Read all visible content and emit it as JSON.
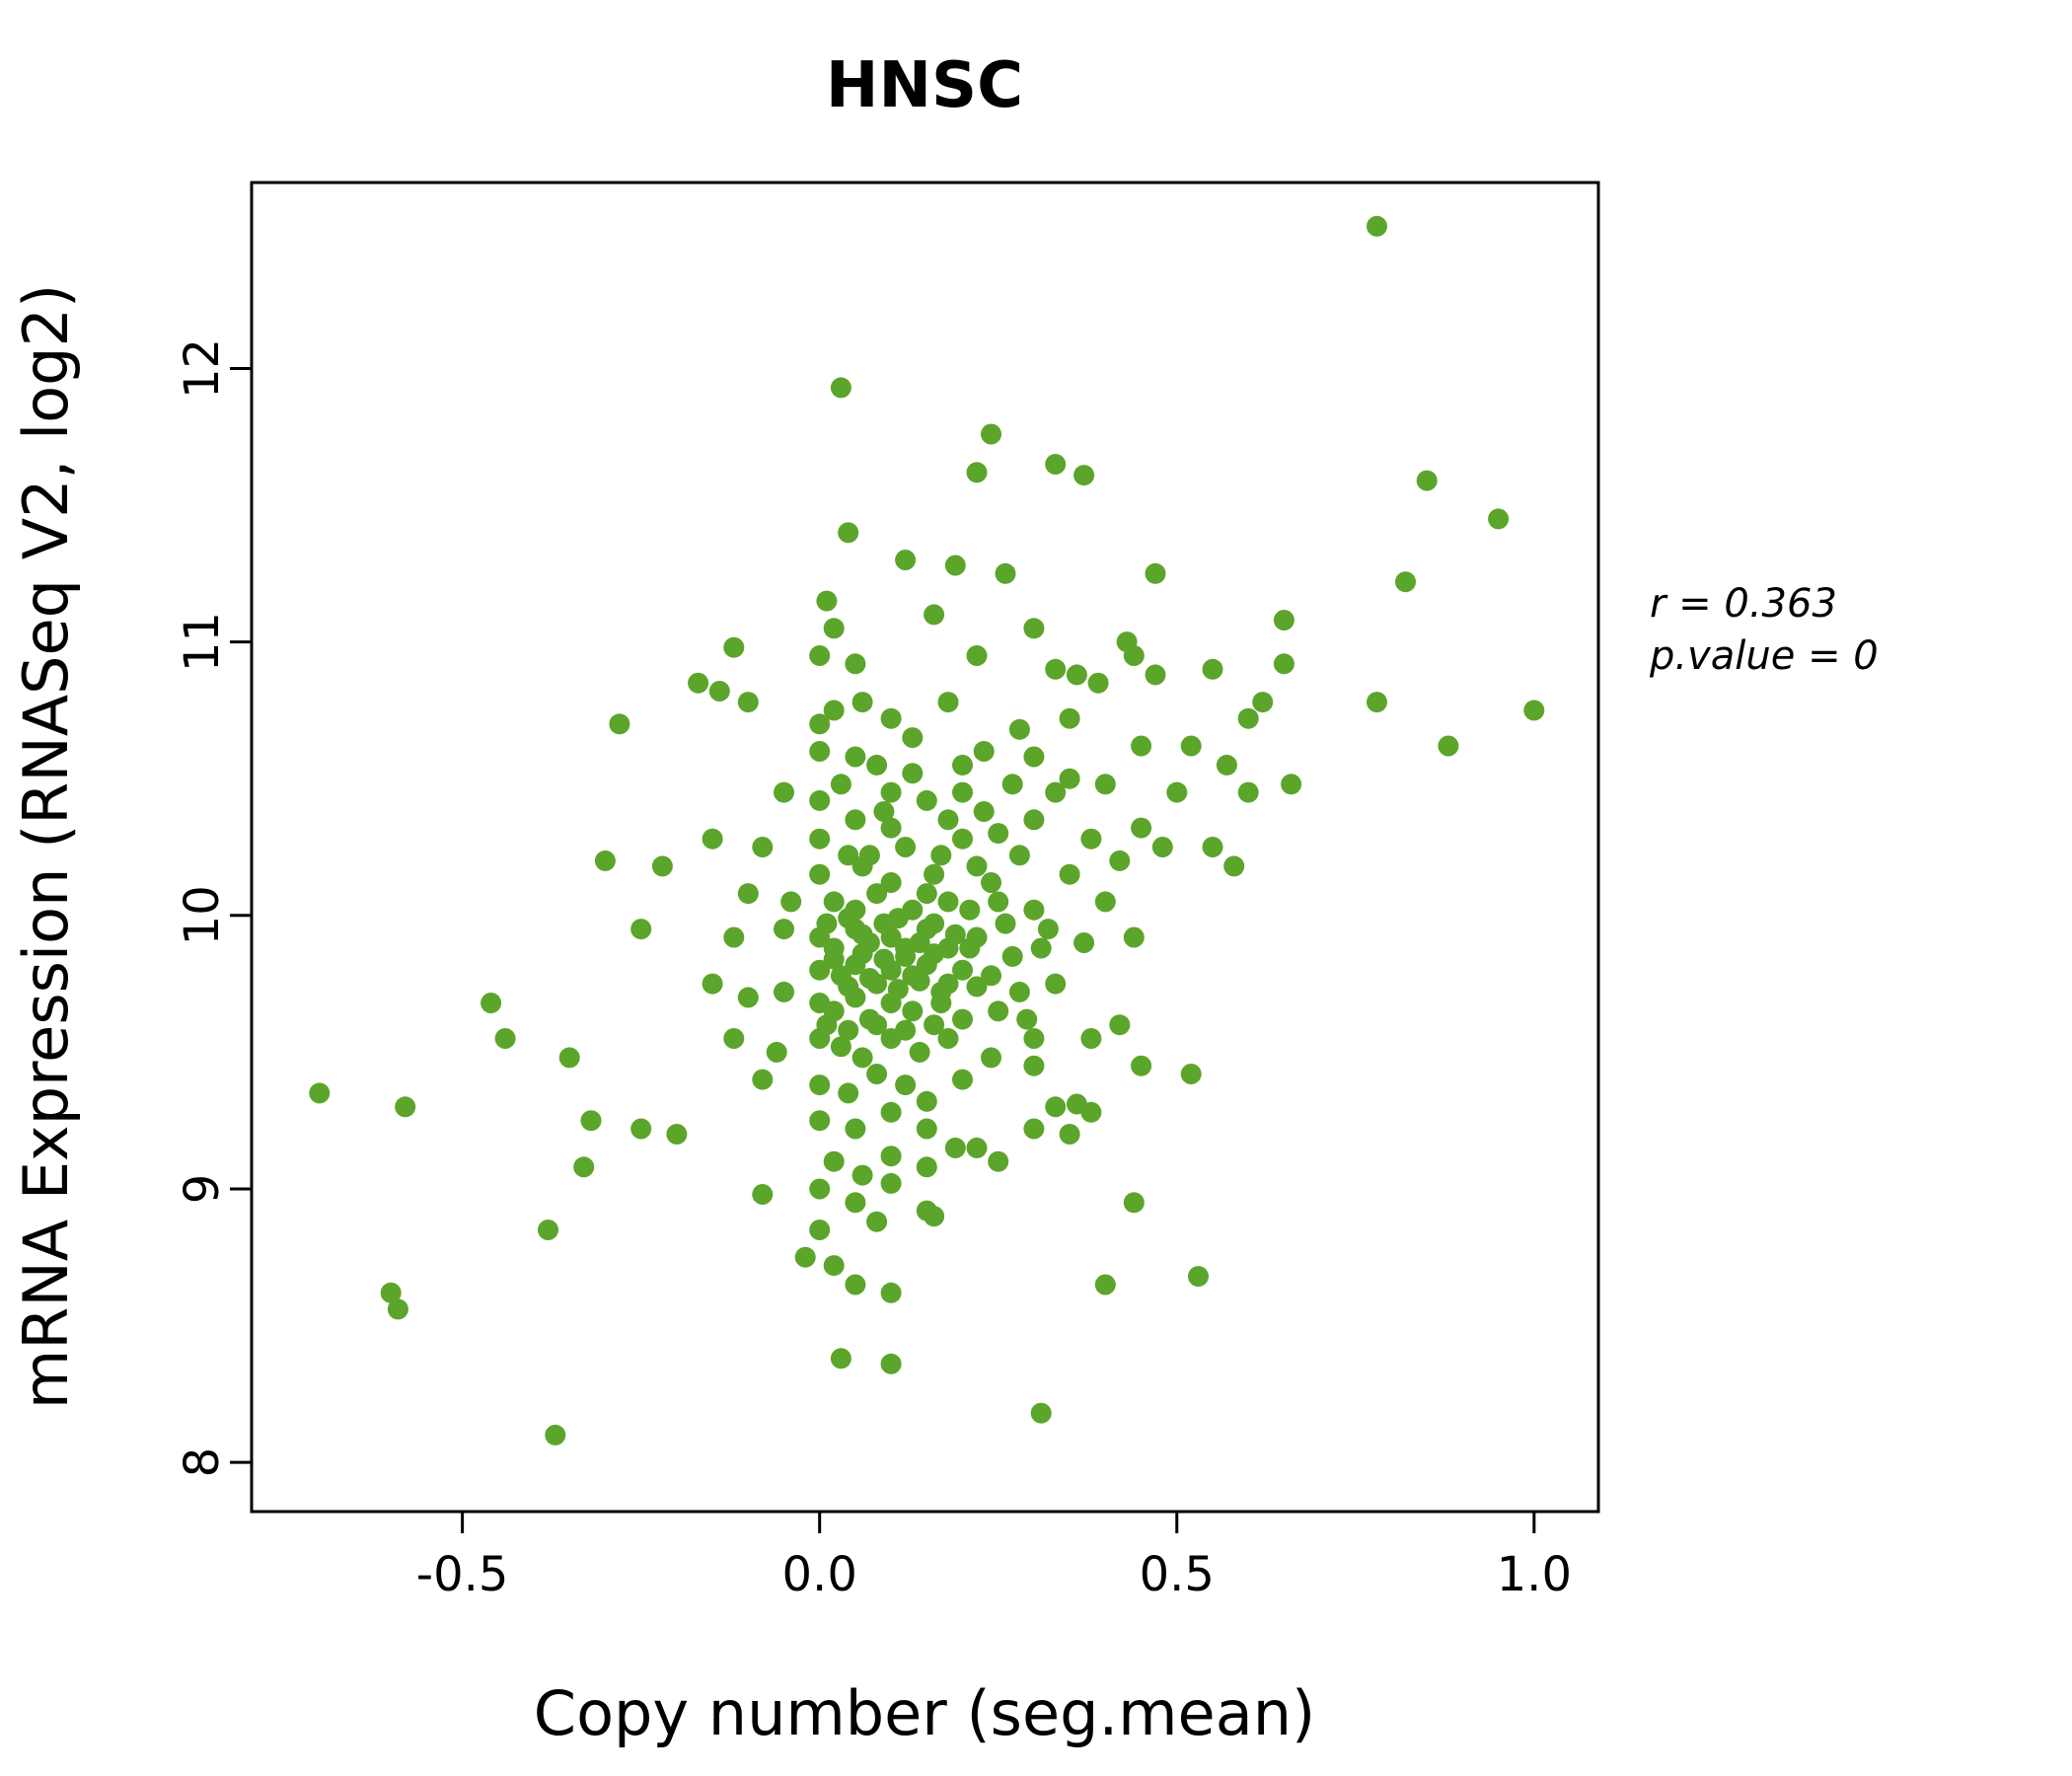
{
  "chart_data": {
    "type": "scatter",
    "title": "HNSC",
    "xlabel": "Copy number (seg.mean)",
    "ylabel": "mRNA Expression (RNASeq V2, log2)",
    "xlim": [
      -0.795,
      1.09
    ],
    "ylim": [
      7.82,
      12.68
    ],
    "x_ticks": [
      -0.5,
      0.0,
      0.5,
      1.0
    ],
    "x_tick_labels": [
      "-0.5",
      "0.0",
      "0.5",
      "1.0"
    ],
    "y_ticks": [
      8,
      9,
      10,
      11,
      12
    ],
    "y_tick_labels": [
      "8",
      "9",
      "10",
      "11",
      "12"
    ],
    "grid": false,
    "legend": "none",
    "point_color": "#5ba52b",
    "title_color": "#5ba52b",
    "frame_color": "#000000",
    "stats": {
      "r": 0.363,
      "p_value": 0
    },
    "annotation": {
      "line1": "r = 0.363",
      "line2": "p.value = 0"
    },
    "points": [
      [
        0.78,
        12.52
      ],
      [
        0.03,
        11.93
      ],
      [
        0.24,
        11.76
      ],
      [
        0.22,
        11.62
      ],
      [
        0.33,
        11.65
      ],
      [
        0.37,
        11.61
      ],
      [
        0.85,
        11.59
      ],
      [
        0.95,
        11.45
      ],
      [
        0.04,
        11.4
      ],
      [
        0.12,
        11.3
      ],
      [
        0.19,
        11.28
      ],
      [
        0.26,
        11.25
      ],
      [
        0.47,
        11.25
      ],
      [
        0.82,
        11.22
      ],
      [
        0.01,
        11.15
      ],
      [
        0.16,
        11.1
      ],
      [
        0.65,
        11.08
      ],
      [
        0.3,
        11.05
      ],
      [
        0.02,
        11.05
      ],
      [
        0.43,
        11.0
      ],
      [
        0.0,
        10.95
      ],
      [
        0.05,
        10.92
      ],
      [
        0.22,
        10.95
      ],
      [
        0.33,
        10.9
      ],
      [
        0.36,
        10.88
      ],
      [
        0.44,
        10.95
      ],
      [
        0.55,
        10.9
      ],
      [
        0.65,
        10.92
      ],
      [
        -0.12,
        10.98
      ],
      [
        -0.17,
        10.85
      ],
      [
        -0.14,
        10.82
      ],
      [
        -0.1,
        10.78
      ],
      [
        0.39,
        10.85
      ],
      [
        0.47,
        10.88
      ],
      [
        0.78,
        10.78
      ],
      [
        1.0,
        10.75
      ],
      [
        0.88,
        10.62
      ],
      [
        0.6,
        10.72
      ],
      [
        0.62,
        10.78
      ],
      [
        -0.28,
        10.7
      ],
      [
        0.0,
        10.7
      ],
      [
        0.02,
        10.75
      ],
      [
        0.06,
        10.78
      ],
      [
        0.1,
        10.72
      ],
      [
        0.13,
        10.65
      ],
      [
        0.18,
        10.78
      ],
      [
        0.35,
        10.72
      ],
      [
        0.28,
        10.68
      ],
      [
        0.0,
        10.6
      ],
      [
        0.05,
        10.58
      ],
      [
        0.08,
        10.55
      ],
      [
        0.2,
        10.55
      ],
      [
        0.23,
        10.6
      ],
      [
        0.3,
        10.58
      ],
      [
        0.45,
        10.62
      ],
      [
        0.52,
        10.62
      ],
      [
        0.33,
        10.45
      ],
      [
        0.35,
        10.5
      ],
      [
        0.4,
        10.48
      ],
      [
        0.66,
        10.48
      ],
      [
        0.57,
        10.55
      ],
      [
        0.6,
        10.45
      ],
      [
        0.13,
        10.52
      ],
      [
        0.27,
        10.48
      ],
      [
        -0.05,
        10.45
      ],
      [
        0.0,
        10.42
      ],
      [
        0.03,
        10.48
      ],
      [
        0.1,
        10.45
      ],
      [
        0.15,
        10.42
      ],
      [
        0.2,
        10.45
      ],
      [
        0.09,
        10.38
      ],
      [
        0.23,
        10.38
      ],
      [
        0.05,
        10.35
      ],
      [
        0.1,
        10.32
      ],
      [
        0.18,
        10.35
      ],
      [
        0.25,
        10.3
      ],
      [
        0.3,
        10.35
      ],
      [
        0.45,
        10.32
      ],
      [
        0.5,
        10.45
      ],
      [
        -0.15,
        10.28
      ],
      [
        -0.08,
        10.25
      ],
      [
        0.0,
        10.28
      ],
      [
        0.04,
        10.22
      ],
      [
        0.12,
        10.25
      ],
      [
        0.2,
        10.28
      ],
      [
        0.28,
        10.22
      ],
      [
        0.38,
        10.28
      ],
      [
        0.07,
        10.22
      ],
      [
        0.17,
        10.22
      ],
      [
        0.55,
        10.25
      ],
      [
        -0.3,
        10.2
      ],
      [
        -0.22,
        10.18
      ],
      [
        0.0,
        10.15
      ],
      [
        0.06,
        10.18
      ],
      [
        0.1,
        10.12
      ],
      [
        0.16,
        10.15
      ],
      [
        0.22,
        10.18
      ],
      [
        0.35,
        10.15
      ],
      [
        0.42,
        10.2
      ],
      [
        0.48,
        10.25
      ],
      [
        0.58,
        10.18
      ],
      [
        0.24,
        10.12
      ],
      [
        -0.1,
        10.08
      ],
      [
        -0.04,
        10.05
      ],
      [
        0.02,
        10.05
      ],
      [
        0.08,
        10.08
      ],
      [
        0.13,
        10.02
      ],
      [
        0.18,
        10.05
      ],
      [
        0.25,
        10.05
      ],
      [
        0.3,
        10.02
      ],
      [
        0.4,
        10.05
      ],
      [
        0.15,
        10.08
      ],
      [
        0.05,
        10.02
      ],
      [
        0.21,
        10.02
      ],
      [
        -0.25,
        9.95
      ],
      [
        -0.12,
        9.92
      ],
      [
        -0.05,
        9.95
      ],
      [
        0.0,
        9.92
      ],
      [
        0.02,
        9.88
      ],
      [
        0.05,
        9.95
      ],
      [
        0.07,
        9.9
      ],
      [
        0.1,
        9.92
      ],
      [
        0.12,
        9.85
      ],
      [
        0.15,
        9.95
      ],
      [
        0.18,
        9.88
      ],
      [
        0.22,
        9.92
      ],
      [
        0.27,
        9.85
      ],
      [
        0.32,
        9.95
      ],
      [
        0.37,
        9.9
      ],
      [
        0.44,
        9.92
      ],
      [
        0.01,
        9.97
      ],
      [
        0.04,
        9.99
      ],
      [
        0.06,
        9.93
      ],
      [
        0.09,
        9.97
      ],
      [
        0.11,
        9.99
      ],
      [
        0.14,
        9.9
      ],
      [
        0.16,
        9.97
      ],
      [
        0.19,
        9.93
      ],
      [
        0.26,
        9.97
      ],
      [
        0.02,
        9.84
      ],
      [
        0.06,
        9.86
      ],
      [
        0.09,
        9.84
      ],
      [
        0.12,
        9.88
      ],
      [
        0.16,
        9.86
      ],
      [
        0.21,
        9.88
      ],
      [
        0.31,
        9.88
      ],
      [
        0.0,
        9.8
      ],
      [
        0.03,
        9.78
      ],
      [
        0.05,
        9.82
      ],
      [
        0.08,
        9.75
      ],
      [
        0.1,
        9.8
      ],
      [
        0.13,
        9.78
      ],
      [
        0.15,
        9.82
      ],
      [
        0.18,
        9.75
      ],
      [
        0.2,
        9.8
      ],
      [
        0.24,
        9.78
      ],
      [
        0.28,
        9.72
      ],
      [
        0.33,
        9.75
      ],
      [
        0.04,
        9.74
      ],
      [
        0.07,
        9.77
      ],
      [
        0.11,
        9.73
      ],
      [
        0.14,
        9.76
      ],
      [
        0.17,
        9.72
      ],
      [
        0.22,
        9.74
      ],
      [
        -0.15,
        9.75
      ],
      [
        -0.1,
        9.7
      ],
      [
        -0.05,
        9.72
      ],
      [
        -0.46,
        9.68
      ],
      [
        0.0,
        9.68
      ],
      [
        0.02,
        9.65
      ],
      [
        0.05,
        9.7
      ],
      [
        0.07,
        9.62
      ],
      [
        0.1,
        9.68
      ],
      [
        0.13,
        9.65
      ],
      [
        0.17,
        9.68
      ],
      [
        0.2,
        9.62
      ],
      [
        0.25,
        9.65
      ],
      [
        0.29,
        9.62
      ],
      [
        0.01,
        9.6
      ],
      [
        0.04,
        9.58
      ],
      [
        0.08,
        9.6
      ],
      [
        0.12,
        9.58
      ],
      [
        0.16,
        9.6
      ],
      [
        -0.44,
        9.55
      ],
      [
        -0.35,
        9.48
      ],
      [
        -0.12,
        9.55
      ],
      [
        -0.06,
        9.5
      ],
      [
        0.0,
        9.55
      ],
      [
        0.03,
        9.52
      ],
      [
        0.06,
        9.48
      ],
      [
        0.1,
        9.55
      ],
      [
        0.14,
        9.5
      ],
      [
        0.18,
        9.55
      ],
      [
        0.3,
        9.55
      ],
      [
        0.42,
        9.6
      ],
      [
        0.38,
        9.55
      ],
      [
        0.24,
        9.48
      ],
      [
        0.3,
        9.45
      ],
      [
        0.45,
        9.45
      ],
      [
        0.52,
        9.42
      ],
      [
        -0.08,
        9.4
      ],
      [
        0.0,
        9.38
      ],
      [
        0.04,
        9.35
      ],
      [
        0.08,
        9.42
      ],
      [
        0.12,
        9.38
      ],
      [
        0.15,
        9.32
      ],
      [
        0.2,
        9.4
      ],
      [
        -0.7,
        9.35
      ],
      [
        -0.58,
        9.3
      ],
      [
        0.33,
        9.3
      ],
      [
        0.36,
        9.31
      ],
      [
        0.38,
        9.28
      ],
      [
        -0.32,
        9.25
      ],
      [
        -0.25,
        9.22
      ],
      [
        -0.2,
        9.2
      ],
      [
        0.0,
        9.25
      ],
      [
        0.05,
        9.22
      ],
      [
        0.1,
        9.28
      ],
      [
        0.15,
        9.22
      ],
      [
        0.3,
        9.22
      ],
      [
        0.35,
        9.2
      ],
      [
        0.19,
        9.15
      ],
      [
        -0.33,
        9.08
      ],
      [
        0.02,
        9.1
      ],
      [
        0.06,
        9.05
      ],
      [
        0.1,
        9.12
      ],
      [
        0.15,
        9.08
      ],
      [
        0.22,
        9.15
      ],
      [
        0.25,
        9.1
      ],
      [
        -0.08,
        8.98
      ],
      [
        0.0,
        9.0
      ],
      [
        0.05,
        8.95
      ],
      [
        0.1,
        9.02
      ],
      [
        0.44,
        8.95
      ],
      [
        0.15,
        8.92
      ],
      [
        -0.38,
        8.85
      ],
      [
        0.0,
        8.85
      ],
      [
        0.08,
        8.88
      ],
      [
        0.16,
        8.9
      ],
      [
        -0.02,
        8.75
      ],
      [
        0.02,
        8.72
      ],
      [
        0.53,
        8.68
      ],
      [
        0.4,
        8.65
      ],
      [
        0.05,
        8.65
      ],
      [
        0.1,
        8.62
      ],
      [
        -0.6,
        8.62
      ],
      [
        -0.59,
        8.56
      ],
      [
        0.03,
        8.38
      ],
      [
        0.1,
        8.36
      ],
      [
        -0.37,
        8.1
      ],
      [
        0.31,
        8.18
      ]
    ]
  }
}
